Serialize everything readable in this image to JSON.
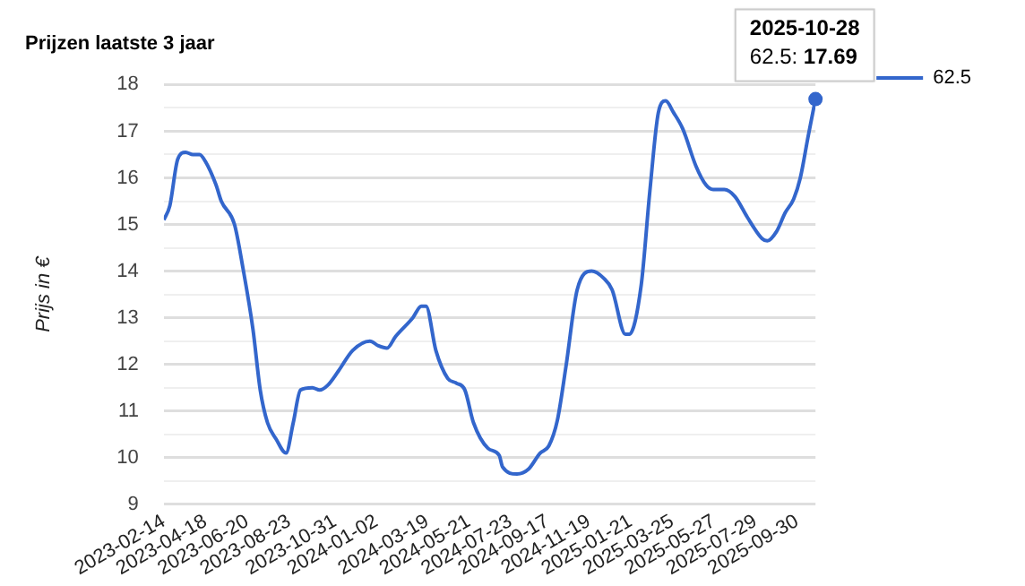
{
  "chart_data": {
    "type": "line",
    "title": "Prijzen laatste 3 jaar",
    "ylabel": "Prijs in €",
    "x": [
      "2023-02-14",
      "2023-02-23",
      "2023-03-07",
      "2023-03-19",
      "2023-03-30",
      "2023-04-09",
      "2023-04-18",
      "2023-05-04",
      "2023-05-12",
      "2023-06-01",
      "2023-06-14",
      "2023-06-29",
      "2023-07-10",
      "2023-07-21",
      "2023-08-03",
      "2023-08-18",
      "2023-08-29",
      "2023-09-09",
      "2023-09-27",
      "2023-10-08",
      "2023-10-20",
      "2023-11-05",
      "2023-11-27",
      "2023-12-23",
      "2024-01-05",
      "2024-01-18",
      "2024-01-31",
      "2024-02-26",
      "2024-03-10",
      "2024-03-17",
      "2024-04-01",
      "2024-04-19",
      "2024-05-02",
      "2024-05-15",
      "2024-05-28",
      "2024-06-19",
      "2024-07-06",
      "2024-07-11",
      "2024-08-02",
      "2024-08-19",
      "2024-09-06",
      "2024-09-19",
      "2024-10-02",
      "2024-10-15",
      "2024-11-01",
      "2024-11-23",
      "2024-12-11",
      "2024-12-24",
      "2025-01-13",
      "2025-01-19",
      "2025-02-06",
      "2025-02-19",
      "2025-03-04",
      "2025-03-15",
      "2025-03-27",
      "2025-04-10",
      "2025-04-30",
      "2025-05-15",
      "2025-05-26",
      "2025-06-12",
      "2025-06-28",
      "2025-07-17",
      "2025-08-08",
      "2025-08-16",
      "2025-08-30",
      "2025-09-12",
      "2025-09-25",
      "2025-10-05",
      "2025-10-17",
      "2025-10-28"
    ],
    "series": [
      {
        "name": "62.5",
        "color": "#3366cc",
        "values": [
          15.1,
          15.4,
          16.4,
          16.55,
          16.5,
          16.5,
          16.35,
          15.85,
          15.5,
          15.0,
          14.05,
          12.75,
          11.45,
          10.75,
          10.4,
          10.1,
          10.75,
          11.45,
          11.5,
          11.45,
          11.55,
          11.85,
          12.3,
          12.5,
          12.4,
          12.35,
          12.6,
          13.0,
          13.25,
          13.25,
          12.3,
          11.7,
          11.6,
          11.45,
          10.75,
          10.2,
          10.05,
          9.8,
          9.65,
          9.75,
          10.1,
          10.25,
          10.8,
          11.95,
          13.6,
          14.0,
          13.85,
          13.6,
          12.65,
          12.65,
          13.7,
          15.7,
          17.4,
          17.65,
          17.4,
          17.05,
          16.25,
          15.85,
          15.75,
          15.75,
          15.6,
          15.15,
          14.7,
          14.65,
          14.85,
          15.25,
          15.55,
          16.0,
          16.9,
          17.69
        ]
      }
    ],
    "xlim": [
      "2023-02-14",
      "2025-10-28"
    ],
    "xticks": [
      "2023-02-14",
      "2023-04-18",
      "2023-06-20",
      "2023-08-23",
      "2023-10-31",
      "2024-01-02",
      "2024-03-19",
      "2024-05-21",
      "2024-07-23",
      "2024-09-17",
      "2024-11-19",
      "2025-01-21",
      "2025-03-25",
      "2025-05-27",
      "2025-07-29",
      "2025-09-30"
    ],
    "ylim": [
      9,
      18
    ],
    "yticks": [
      9,
      {
        "value": 9.5,
        "label": null
      },
      10,
      {
        "value": 10.5,
        "label": null
      },
      11,
      {
        "value": 11.5,
        "label": null
      },
      12,
      {
        "value": 12.5,
        "label": null
      },
      13,
      {
        "value": 13.5,
        "label": null
      },
      14,
      {
        "value": 14.5,
        "label": null
      },
      15,
      {
        "value": 15.5,
        "label": null
      },
      16,
      {
        "value": 16.5,
        "label": null
      },
      17,
      {
        "value": 17.5,
        "label": null
      },
      18
    ],
    "annotations": [
      {
        "text": "2025-10-28\n62.5: 17.69",
        "x": "2025-10-28",
        "y": 17.69
      }
    ],
    "grid": "y",
    "legend": "right",
    "marker": "none",
    "line_style": "solid"
  }
}
